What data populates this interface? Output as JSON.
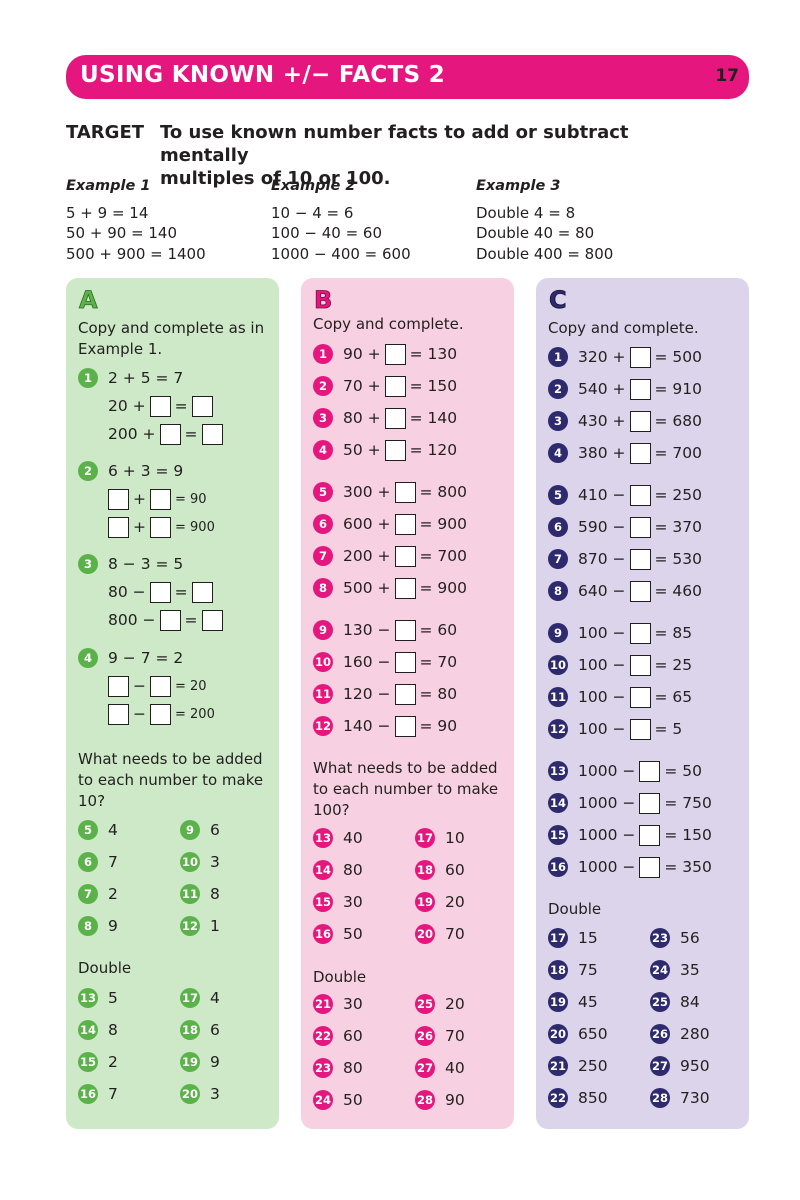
{
  "header": {
    "title": "USING KNOWN +/− FACTS 2",
    "page_number": "17"
  },
  "target": {
    "label": "TARGET",
    "text_line1": "To use known number facts to add or subtract mentally",
    "text_line2": "multiples of 10 or 100."
  },
  "examples": [
    {
      "heading": "Example 1",
      "lines": [
        "5 + 9 = 14",
        "50 + 90 = 140",
        "500 + 900 = 1400"
      ]
    },
    {
      "heading": "Example 2",
      "lines": [
        "10 − 4 = 6",
        "100 − 40 = 60",
        "1000 − 400 = 600"
      ]
    },
    {
      "heading": "Example 3",
      "lines": [
        "Double 4 = 8",
        "Double 40 = 80",
        "Double 400 = 800"
      ]
    }
  ],
  "section_a": {
    "label": "A",
    "instruction_line1": "Copy and complete as in",
    "instruction_line2": "Example 1.",
    "q1": {
      "n": "1",
      "fact": "2 + 5 = 7",
      "r1_a": "20 +",
      "r1_b": "=",
      "r2_a": "200 +",
      "r2_b": "="
    },
    "q2": {
      "n": "2",
      "fact": "6 + 3 = 9",
      "r1_op": "+",
      "r1_eq": "= 90",
      "r2_op": "+",
      "r2_eq": "= 900"
    },
    "q3": {
      "n": "3",
      "fact": "8 − 3 = 5",
      "r1_a": "80 −",
      "r1_b": "=",
      "r2_a": "800 −",
      "r2_b": "="
    },
    "q4": {
      "n": "4",
      "fact": "9 − 7 = 2",
      "r1_op": "−",
      "r1_eq": "= 20",
      "r2_op": "−",
      "r2_eq": "= 200"
    },
    "question2_line1": "What needs to be added",
    "question2_line2": "to each number to make",
    "question2_line3": "10?",
    "make10": [
      {
        "n": "5",
        "v": "4"
      },
      {
        "n": "9",
        "v": "6"
      },
      {
        "n": "6",
        "v": "7"
      },
      {
        "n": "10",
        "v": "3"
      },
      {
        "n": "7",
        "v": "2"
      },
      {
        "n": "11",
        "v": "8"
      },
      {
        "n": "8",
        "v": "9"
      },
      {
        "n": "12",
        "v": "1"
      }
    ],
    "double_label": "Double",
    "double": [
      {
        "n": "13",
        "v": "5"
      },
      {
        "n": "17",
        "v": "4"
      },
      {
        "n": "14",
        "v": "8"
      },
      {
        "n": "18",
        "v": "6"
      },
      {
        "n": "15",
        "v": "2"
      },
      {
        "n": "19",
        "v": "9"
      },
      {
        "n": "16",
        "v": "7"
      },
      {
        "n": "20",
        "v": "3"
      }
    ]
  },
  "section_b": {
    "label": "B",
    "instruction": "Copy and complete.",
    "items": [
      {
        "n": "1",
        "a": "90 +",
        "b": "= 130"
      },
      {
        "n": "2",
        "a": "70 +",
        "b": "= 150"
      },
      {
        "n": "3",
        "a": "80 +",
        "b": "= 140"
      },
      {
        "n": "4",
        "a": "50 +",
        "b": "= 120"
      },
      {
        "n": "5",
        "a": "300 +",
        "b": "= 800"
      },
      {
        "n": "6",
        "a": "600 +",
        "b": "= 900"
      },
      {
        "n": "7",
        "a": "200 +",
        "b": "= 700"
      },
      {
        "n": "8",
        "a": "500 +",
        "b": "= 900"
      },
      {
        "n": "9",
        "a": "130 −",
        "b": "= 60"
      },
      {
        "n": "10",
        "a": "160 −",
        "b": "= 70"
      },
      {
        "n": "11",
        "a": "120 −",
        "b": "= 80"
      },
      {
        "n": "12",
        "a": "140 −",
        "b": "= 90"
      }
    ],
    "question_line1": "What needs to be added",
    "question_line2": "to each number to make",
    "question_line3": "100?",
    "make100": [
      {
        "n": "13",
        "v": "40"
      },
      {
        "n": "17",
        "v": "10"
      },
      {
        "n": "14",
        "v": "80"
      },
      {
        "n": "18",
        "v": "60"
      },
      {
        "n": "15",
        "v": "30"
      },
      {
        "n": "19",
        "v": "20"
      },
      {
        "n": "16",
        "v": "50"
      },
      {
        "n": "20",
        "v": "70"
      }
    ],
    "double_label": "Double",
    "double": [
      {
        "n": "21",
        "v": "30"
      },
      {
        "n": "25",
        "v": "20"
      },
      {
        "n": "22",
        "v": "60"
      },
      {
        "n": "26",
        "v": "70"
      },
      {
        "n": "23",
        "v": "80"
      },
      {
        "n": "27",
        "v": "40"
      },
      {
        "n": "24",
        "v": "50"
      },
      {
        "n": "28",
        "v": "90"
      }
    ]
  },
  "section_c": {
    "label": "C",
    "instruction": "Copy and complete.",
    "items": [
      {
        "n": "1",
        "a": "320 +",
        "b": "= 500"
      },
      {
        "n": "2",
        "a": "540 +",
        "b": "= 910"
      },
      {
        "n": "3",
        "a": "430 +",
        "b": "= 680"
      },
      {
        "n": "4",
        "a": "380 +",
        "b": "= 700"
      },
      {
        "n": "5",
        "a": "410 −",
        "b": "= 250"
      },
      {
        "n": "6",
        "a": "590 −",
        "b": "= 370"
      },
      {
        "n": "7",
        "a": "870 −",
        "b": "= 530"
      },
      {
        "n": "8",
        "a": "640 −",
        "b": "= 460"
      },
      {
        "n": "9",
        "a": "100 −",
        "b": "= 85"
      },
      {
        "n": "10",
        "a": "100 −",
        "b": "= 25"
      },
      {
        "n": "11",
        "a": "100 −",
        "b": "= 65"
      },
      {
        "n": "12",
        "a": "100 −",
        "b": "= 5"
      },
      {
        "n": "13",
        "a": "1000 −",
        "b": "= 50"
      },
      {
        "n": "14",
        "a": "1000 −",
        "b": "= 750"
      },
      {
        "n": "15",
        "a": "1000 −",
        "b": "= 150"
      },
      {
        "n": "16",
        "a": "1000 −",
        "b": "= 350"
      }
    ],
    "double_label": "Double",
    "double": [
      {
        "n": "17",
        "v": "15"
      },
      {
        "n": "23",
        "v": "56"
      },
      {
        "n": "18",
        "v": "75"
      },
      {
        "n": "24",
        "v": "35"
      },
      {
        "n": "19",
        "v": "45"
      },
      {
        "n": "25",
        "v": "84"
      },
      {
        "n": "20",
        "v": "650"
      },
      {
        "n": "26",
        "v": "280"
      },
      {
        "n": "21",
        "v": "250"
      },
      {
        "n": "27",
        "v": "950"
      },
      {
        "n": "22",
        "v": "850"
      },
      {
        "n": "28",
        "v": "730"
      }
    ]
  },
  "colors": {
    "header": "#e5177e",
    "panel_a": "#cde9c8",
    "panel_b": "#f7d1e2",
    "panel_c": "#dcd4ea",
    "bullet_a": "#5cb24a",
    "bullet_b": "#e5177e",
    "bullet_c": "#2e2a6e"
  }
}
